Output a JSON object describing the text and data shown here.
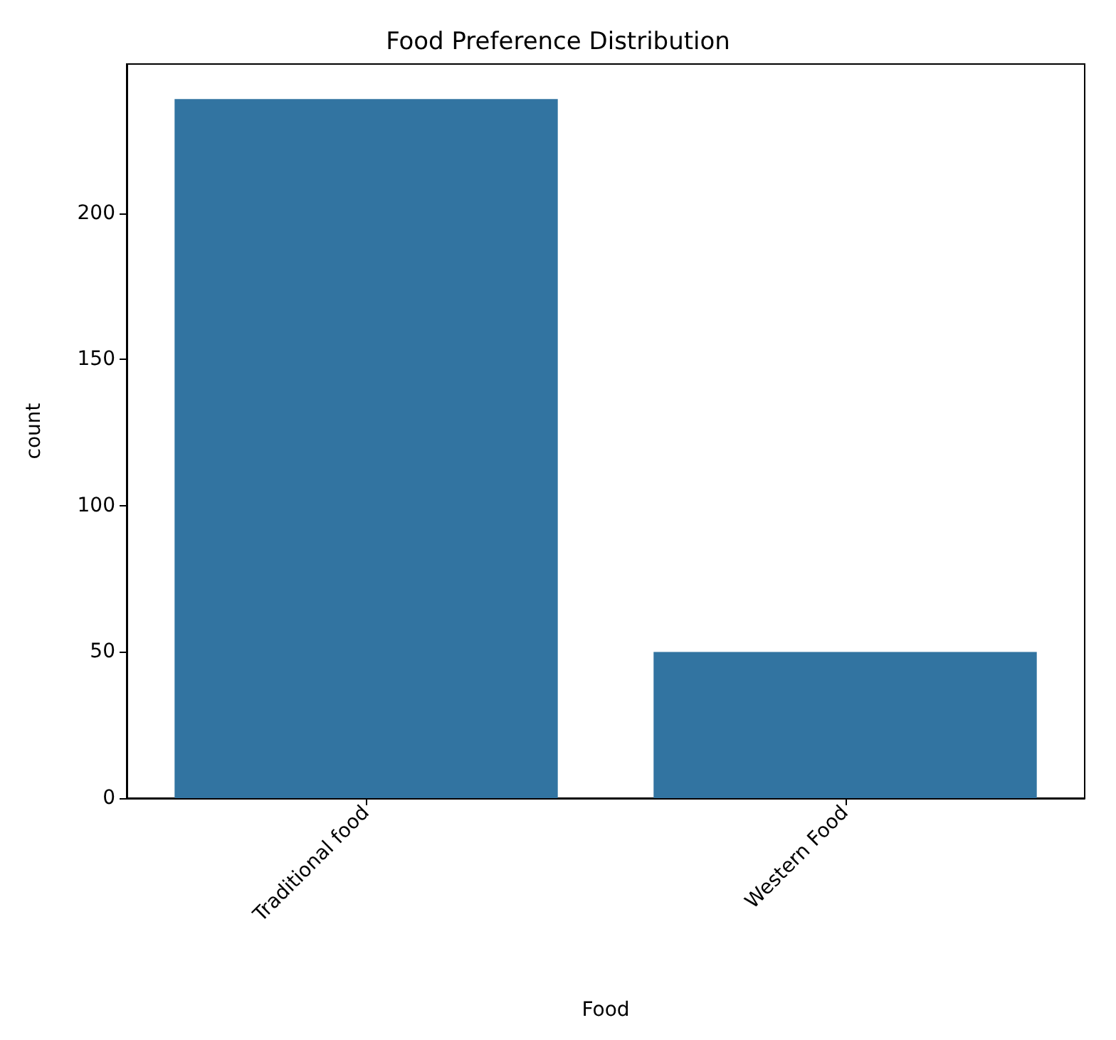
{
  "chart_data": {
    "type": "bar",
    "title": "Food Preference Distribution",
    "xlabel": "Food",
    "ylabel": "count",
    "categories": [
      "Traditional food",
      "Western Food"
    ],
    "values": [
      239,
      50
    ],
    "color": "#3274a1",
    "ylim": [
      0,
      251
    ],
    "yticks": [
      0,
      50,
      100,
      150,
      200
    ],
    "grid": false
  }
}
